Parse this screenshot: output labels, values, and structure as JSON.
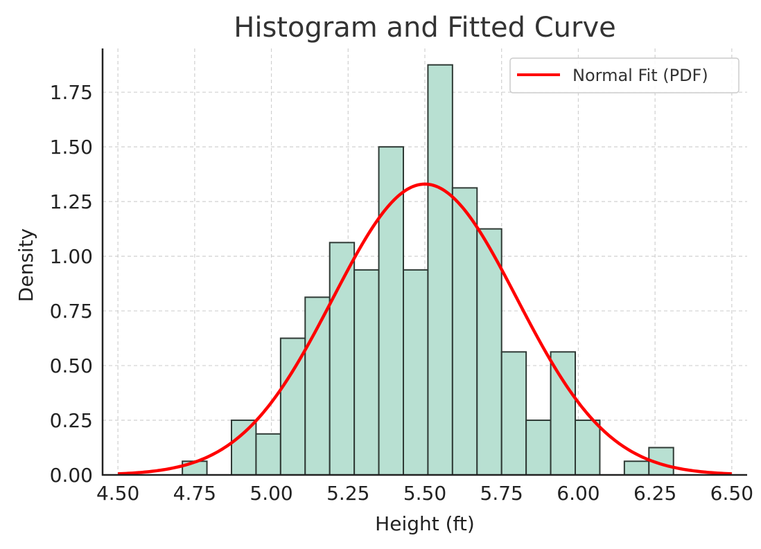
{
  "chart_data": {
    "type": "bar",
    "title": "Histogram and Fitted Curve",
    "xlabel": "Height (ft)",
    "ylabel": "Density",
    "xlim": [
      4.45,
      6.55
    ],
    "ylim": [
      0,
      1.95
    ],
    "x_ticks": [
      4.5,
      4.75,
      5.0,
      5.25,
      5.5,
      5.75,
      6.0,
      6.25,
      6.5
    ],
    "x_tick_labels": [
      "4.50",
      "4.75",
      "5.00",
      "5.25",
      "5.50",
      "5.75",
      "6.00",
      "6.25",
      "6.50"
    ],
    "y_ticks": [
      0,
      0.25,
      0.5,
      0.75,
      1.0,
      1.25,
      1.5,
      1.75
    ],
    "y_tick_labels": [
      "0.00",
      "0.25",
      "0.50",
      "0.75",
      "1.00",
      "1.25",
      "1.50",
      "1.75"
    ],
    "grid": true,
    "histogram": {
      "bin_edges": [
        4.71,
        4.79,
        4.87,
        4.95,
        5.03,
        5.11,
        5.19,
        5.27,
        5.35,
        5.43,
        5.51,
        5.59,
        5.67,
        5.75,
        5.83,
        5.91,
        5.99,
        6.07,
        6.15,
        6.23,
        6.31
      ],
      "densities": [
        0.0625,
        0,
        0.25,
        0.1875,
        0.625,
        0.8125,
        1.0625,
        0.9375,
        1.5,
        0.9375,
        1.875,
        1.3125,
        1.125,
        0.5625,
        0.25,
        0.5625,
        0.25,
        0,
        0.0625,
        0.125
      ],
      "fill_color": "#b8e0d2",
      "edge_color": "#2f3a35"
    },
    "fit_curve": {
      "name": "Normal Fit (PDF)",
      "distribution": "normal",
      "mean": 5.5,
      "std": 0.3,
      "x_range": [
        4.5,
        6.5
      ],
      "color": "#ff0000"
    },
    "legend": {
      "placement": "upper-right",
      "entries": [
        "Normal Fit (PDF)"
      ]
    }
  }
}
